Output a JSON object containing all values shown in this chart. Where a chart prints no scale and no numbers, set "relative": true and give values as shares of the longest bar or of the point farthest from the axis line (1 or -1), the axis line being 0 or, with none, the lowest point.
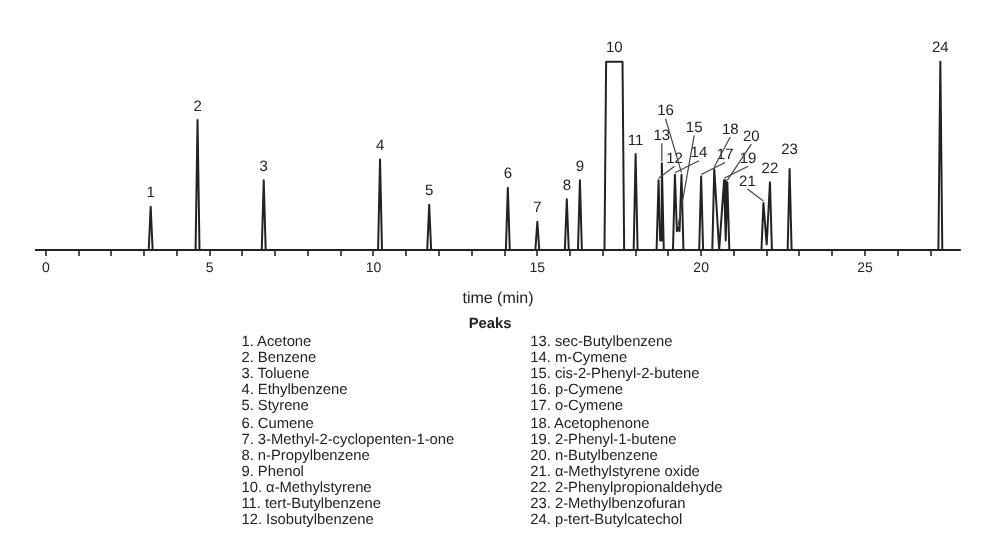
{
  "chart_data": {
    "type": "line",
    "relative": true,
    "xlabel": "time (min)",
    "xlim": [
      -0.3,
      27.9
    ],
    "xticks": [
      0,
      {
        "value": 1,
        "label": null
      },
      {
        "value": 2,
        "label": null
      },
      {
        "value": 3,
        "label": null
      },
      {
        "value": 4,
        "label": null
      },
      5,
      {
        "value": 6,
        "label": null
      },
      {
        "value": 7,
        "label": null
      },
      {
        "value": 8,
        "label": null
      },
      {
        "value": 9,
        "label": null
      },
      10,
      {
        "value": 11,
        "label": null
      },
      {
        "value": 12,
        "label": null
      },
      {
        "value": 13,
        "label": null
      },
      {
        "value": 14,
        "label": null
      },
      15,
      {
        "value": 16,
        "label": null
      },
      {
        "value": 17,
        "label": null
      },
      {
        "value": 18,
        "label": null
      },
      {
        "value": 19,
        "label": null
      },
      20,
      {
        "value": 21,
        "label": null
      },
      {
        "value": 22,
        "label": null
      },
      {
        "value": 23,
        "label": null
      },
      {
        "value": 24,
        "label": null
      },
      25,
      {
        "value": 26,
        "label": null
      },
      {
        "value": 27,
        "label": null
      }
    ],
    "grid": false,
    "legend": false,
    "marker": "none",
    "line_style": "solid",
    "series": [
      {
        "color": "#222222",
        "x": [
          -0.3,
          3.14,
          3.2,
          3.26,
          4.57,
          4.63,
          4.69,
          6.59,
          6.65,
          6.71,
          10.14,
          10.2,
          10.26,
          11.64,
          11.7,
          11.76,
          14.04,
          14.1,
          14.16,
          14.94,
          15.0,
          15.06,
          15.84,
          15.9,
          15.96,
          16.24,
          16.3,
          16.36,
          17.05,
          17.1,
          17.6,
          17.65,
          17.94,
          18.0,
          18.06,
          18.64,
          18.7,
          18.75,
          18.8,
          18.86,
          19.14,
          19.2,
          19.26,
          19.3,
          19.34,
          19.4,
          19.46,
          19.94,
          20.0,
          20.06,
          20.34,
          20.4,
          20.55,
          20.7,
          20.75,
          20.8,
          20.86,
          21.84,
          21.9,
          22.0,
          22.1,
          22.16,
          22.64,
          22.7,
          22.76,
          27.24,
          27.3,
          27.36,
          27.9
        ],
        "values": [
          0,
          0,
          0.23,
          0,
          0,
          0.69,
          0,
          0,
          0.37,
          0,
          0,
          0.48,
          0,
          0,
          0.24,
          0,
          0,
          0.33,
          0,
          0,
          0.15,
          0,
          0,
          0.27,
          0,
          0,
          0.37,
          0,
          0,
          1,
          1,
          0,
          0,
          0.51,
          0,
          0,
          0.37,
          0.05,
          0.46,
          0,
          0,
          0.4,
          0.1,
          0.12,
          0.1,
          0.4,
          0,
          0,
          0.39,
          0,
          0,
          0.43,
          0,
          0.37,
          0.05,
          0.36,
          0,
          0,
          0.25,
          0.03,
          0.36,
          0,
          0,
          0.43,
          0,
          0,
          1,
          0,
          0
        ]
      }
    ],
    "annotations": [
      {
        "text": "1",
        "x": 3.2,
        "y": 0.23
      },
      {
        "text": "2",
        "x": 4.63,
        "y": 0.69
      },
      {
        "text": "3",
        "x": 6.65,
        "y": 0.37
      },
      {
        "text": "4",
        "x": 10.2,
        "y": 0.48
      },
      {
        "text": "5",
        "x": 11.7,
        "y": 0.24
      },
      {
        "text": "6",
        "x": 14.1,
        "y": 0.33
      },
      {
        "text": "7",
        "x": 15.0,
        "y": 0.15
      },
      {
        "text": "8",
        "x": 15.9,
        "y": 0.27
      },
      {
        "text": "9",
        "x": 16.3,
        "y": 0.37
      },
      {
        "text": "10",
        "x": 17.35,
        "y": 1
      },
      {
        "text": "11",
        "x": 18.0,
        "y": 0.51
      },
      {
        "text": "12",
        "x": 18.7,
        "y": 0.37
      },
      {
        "text": "13",
        "x": 18.8,
        "y": 0.46
      },
      {
        "text": "14",
        "x": 19.2,
        "y": 0.4
      },
      {
        "text": "15",
        "x": 19.3,
        "y": 0.12
      },
      {
        "text": "16",
        "x": 19.4,
        "y": 0.4
      },
      {
        "text": "17",
        "x": 20.0,
        "y": 0.39
      },
      {
        "text": "18",
        "x": 20.4,
        "y": 0.43
      },
      {
        "text": "19",
        "x": 20.7,
        "y": 0.37
      },
      {
        "text": "20",
        "x": 20.8,
        "y": 0.36
      },
      {
        "text": "21",
        "x": 21.9,
        "y": 0.25
      },
      {
        "text": "22",
        "x": 22.1,
        "y": 0.36
      },
      {
        "text": "23",
        "x": 22.7,
        "y": 0.43
      },
      {
        "text": "24",
        "x": 27.3,
        "y": 1
      },
      "Peaks",
      "1. Acetone",
      "2. Benzene",
      "3. Toluene",
      "4. Ethylbenzene",
      "5. Styrene",
      "6. Cumene",
      "7. 3-Methyl-2-cyclopenten-1-one",
      "8. n-Propylbenzene",
      "9. Phenol",
      "10. α-Methylstyrene",
      "11. tert-Butylbenzene",
      "12. Isobutylbenzene",
      "13. sec-Butylbenzene",
      "14. m-Cymene",
      "15. cis-2-Phenyl-2-butene",
      "16. p-Cymene",
      "17. o-Cymene",
      "18. Acetophenone",
      "19. 2-Phenyl-1-butene",
      "20. n-Butylbenzene",
      "21. α-Methylstyrene oxide",
      "22. 2-Phenylpropionaldehyde",
      "23. 2-Methylbenzofuran",
      "24. p-tert-Butylcatechol"
    ]
  }
}
